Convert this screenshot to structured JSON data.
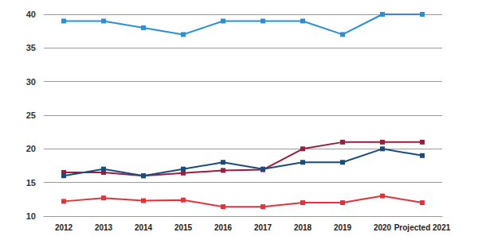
{
  "chart_data": {
    "type": "line",
    "categories": [
      "2012",
      "2013",
      "2014",
      "2015",
      "2016",
      "2017",
      "2018",
      "2019",
      "2020",
      "Projected 2021"
    ],
    "series": [
      {
        "color": "#2a8fd4",
        "values": [
          39,
          39,
          38,
          37,
          39,
          39,
          39,
          37,
          40,
          40
        ]
      },
      {
        "color": "#9b1c3c",
        "values": [
          16.5,
          16.5,
          16,
          16.4,
          16.8,
          16.9,
          20,
          21,
          21,
          21
        ]
      },
      {
        "color": "#1b4a7c",
        "values": [
          16,
          17,
          16,
          17,
          18,
          17,
          18,
          18,
          20,
          19
        ]
      },
      {
        "color": "#e3323a",
        "values": [
          12.2,
          12.7,
          12.3,
          12.4,
          11.4,
          11.4,
          12,
          12,
          13,
          12
        ]
      }
    ],
    "ylim": [
      10,
      40
    ],
    "yticks": [
      10,
      15,
      20,
      25,
      30,
      35,
      40
    ],
    "grid": true,
    "marker": "square",
    "line_style": "solid"
  }
}
